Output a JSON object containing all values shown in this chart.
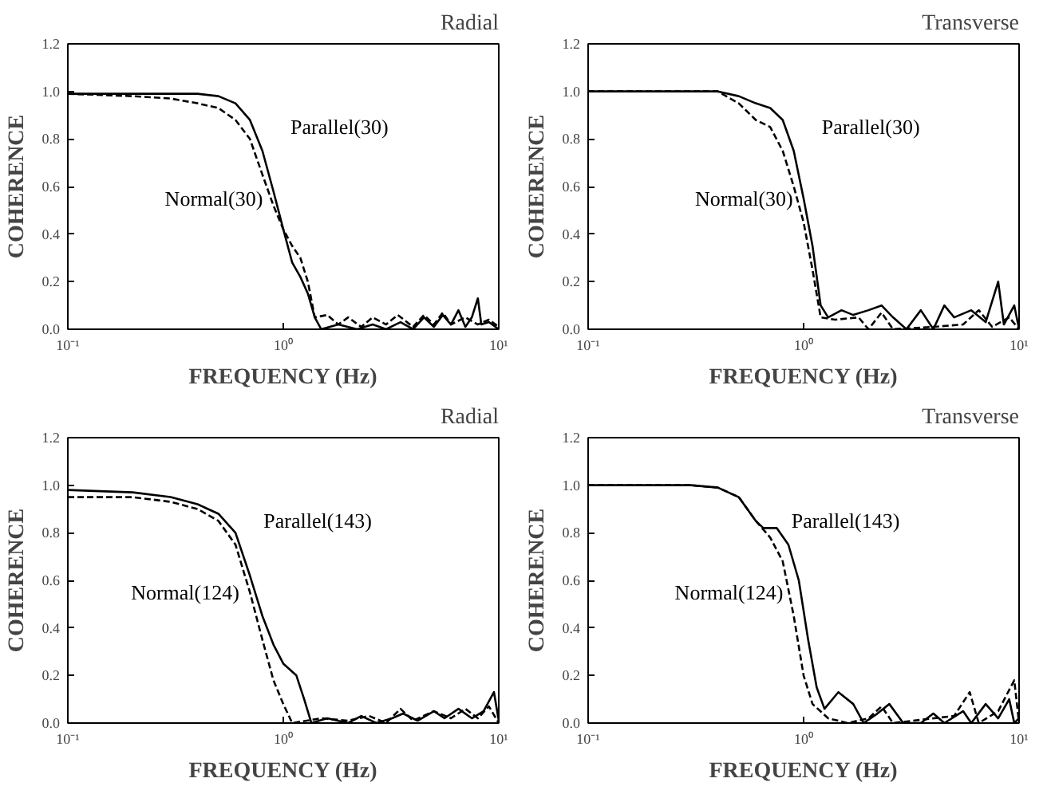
{
  "chart_data": [
    {
      "type": "line",
      "title": "Radial",
      "xlabel": "FREQUENCY (Hz)",
      "ylabel": "COHERENCE",
      "log": "x",
      "grid": false,
      "xlim": [
        0.1,
        10
      ],
      "xticks": [
        {
          "value": 0.1,
          "label": "10⁻¹"
        },
        {
          "value": 1,
          "label": "10⁰"
        },
        {
          "value": 10,
          "label": "10¹"
        }
      ],
      "ylim": [
        0,
        1.2
      ],
      "yticks": [
        {
          "value": 0,
          "label": "0.0"
        },
        {
          "value": 0.2,
          "label": "0.2"
        },
        {
          "value": 0.4,
          "label": "0.4"
        },
        {
          "value": 0.6,
          "label": "0.6"
        },
        {
          "value": 0.8,
          "label": "0.8"
        },
        {
          "value": 1,
          "label": "1.0"
        },
        {
          "value": 1.2,
          "label": "1.2"
        }
      ],
      "series": [
        {
          "name": "Parallel(30)",
          "color": "#000000",
          "line_style": "solid",
          "x": [
            0.1,
            0.2,
            0.3,
            0.4,
            0.5,
            0.6,
            0.7,
            0.8,
            0.9,
            1.0,
            1.1,
            1.2,
            1.3,
            1.4,
            1.5,
            1.8,
            2.2,
            2.6,
            3.0,
            3.5,
            4.0,
            4.5,
            5.0,
            5.5,
            6.0,
            6.5,
            7.0,
            7.5,
            8.0,
            8.3,
            9.0,
            10
          ],
          "values": [
            0.99,
            0.99,
            0.99,
            0.99,
            0.98,
            0.95,
            0.88,
            0.75,
            0.58,
            0.42,
            0.28,
            0.22,
            0.15,
            0.05,
            0.0,
            0.02,
            0.0,
            0.02,
            0.0,
            0.03,
            0.0,
            0.05,
            0.01,
            0.06,
            0.02,
            0.08,
            0.01,
            0.05,
            0.13,
            0.02,
            0.03,
            0.0
          ]
        },
        {
          "name": "Normal(30)",
          "color": "#000000",
          "line_style": "dashed",
          "x": [
            0.1,
            0.2,
            0.3,
            0.4,
            0.5,
            0.6,
            0.7,
            0.8,
            0.9,
            1.0,
            1.1,
            1.2,
            1.3,
            1.4,
            1.6,
            1.8,
            2.0,
            2.3,
            2.6,
            3.0,
            3.4,
            4.0,
            4.5,
            5.0,
            5.5,
            6.0,
            7.0,
            8.0,
            9.0,
            10
          ],
          "values": [
            0.99,
            0.98,
            0.97,
            0.95,
            0.93,
            0.88,
            0.8,
            0.65,
            0.52,
            0.42,
            0.35,
            0.3,
            0.2,
            0.05,
            0.06,
            0.02,
            0.05,
            0.01,
            0.05,
            0.02,
            0.06,
            0.01,
            0.06,
            0.02,
            0.07,
            0.02,
            0.05,
            0.02,
            0.04,
            0.01
          ]
        }
      ]
    },
    {
      "type": "line",
      "title": "Transverse",
      "xlabel": "FREQUENCY (Hz)",
      "ylabel": "COHERENCE",
      "log": "x",
      "grid": false,
      "xlim": [
        0.1,
        10
      ],
      "xticks": [
        {
          "value": 0.1,
          "label": "10⁻¹"
        },
        {
          "value": 1,
          "label": "10⁰"
        },
        {
          "value": 10,
          "label": "10¹"
        }
      ],
      "ylim": [
        0,
        1.2
      ],
      "yticks": [
        {
          "value": 0,
          "label": "0.0"
        },
        {
          "value": 0.2,
          "label": "0.2"
        },
        {
          "value": 0.4,
          "label": "0.4"
        },
        {
          "value": 0.6,
          "label": "0.6"
        },
        {
          "value": 0.8,
          "label": "0.8"
        },
        {
          "value": 1,
          "label": "1.0"
        },
        {
          "value": 1.2,
          "label": "1.2"
        }
      ],
      "series": [
        {
          "name": "Parallel(30)",
          "color": "#000000",
          "line_style": "solid",
          "x": [
            0.1,
            0.2,
            0.3,
            0.4,
            0.5,
            0.6,
            0.7,
            0.8,
            0.9,
            1.0,
            1.1,
            1.2,
            1.3,
            1.5,
            1.7,
            2.0,
            2.3,
            2.6,
            3.0,
            3.5,
            4.0,
            4.5,
            5.0,
            6.0,
            7.0,
            8.0,
            8.5,
            9.5,
            10
          ],
          "values": [
            1.0,
            1.0,
            1.0,
            1.0,
            0.98,
            0.95,
            0.93,
            0.88,
            0.75,
            0.55,
            0.35,
            0.1,
            0.05,
            0.08,
            0.06,
            0.08,
            0.1,
            0.05,
            0.0,
            0.08,
            0.0,
            0.1,
            0.05,
            0.08,
            0.03,
            0.2,
            0.02,
            0.1,
            0.0
          ]
        },
        {
          "name": "Normal(30)",
          "color": "#000000",
          "line_style": "dashed",
          "x": [
            0.1,
            0.2,
            0.3,
            0.4,
            0.5,
            0.6,
            0.7,
            0.8,
            0.9,
            1.0,
            1.1,
            1.2,
            1.4,
            1.8,
            2.0,
            2.3,
            2.6,
            4.0,
            5.5,
            6.5,
            7.5,
            9.0,
            10
          ],
          "values": [
            1.0,
            1.0,
            1.0,
            1.0,
            0.95,
            0.88,
            0.85,
            0.75,
            0.6,
            0.45,
            0.25,
            0.05,
            0.04,
            0.05,
            0.0,
            0.07,
            0.0,
            0.01,
            0.02,
            0.08,
            0.01,
            0.05,
            0.0
          ]
        }
      ]
    },
    {
      "type": "line",
      "title": "Radial",
      "xlabel": "FREQUENCY (Hz)",
      "ylabel": "COHERENCE",
      "log": "x",
      "grid": false,
      "xlim": [
        0.1,
        10
      ],
      "xticks": [
        {
          "value": 0.1,
          "label": "10⁻¹"
        },
        {
          "value": 1,
          "label": "10⁰"
        },
        {
          "value": 10,
          "label": "10¹"
        }
      ],
      "ylim": [
        0,
        1.2
      ],
      "yticks": [
        {
          "value": 0,
          "label": "0.0"
        },
        {
          "value": 0.2,
          "label": "0.2"
        },
        {
          "value": 0.4,
          "label": "0.4"
        },
        {
          "value": 0.6,
          "label": "0.6"
        },
        {
          "value": 0.8,
          "label": "0.8"
        },
        {
          "value": 1,
          "label": "1.0"
        },
        {
          "value": 1.2,
          "label": "1.2"
        }
      ],
      "series": [
        {
          "name": "Parallel(143)",
          "color": "#000000",
          "line_style": "solid",
          "x": [
            0.1,
            0.2,
            0.3,
            0.4,
            0.5,
            0.6,
            0.7,
            0.8,
            0.9,
            1.0,
            1.15,
            1.25,
            1.35,
            1.6,
            2.0,
            2.3,
            2.7,
            3.2,
            3.6,
            4.2,
            5.0,
            5.6,
            6.5,
            7.5,
            8.5,
            9.5,
            10
          ],
          "values": [
            0.98,
            0.97,
            0.95,
            0.92,
            0.88,
            0.8,
            0.62,
            0.45,
            0.33,
            0.25,
            0.2,
            0.1,
            0.0,
            0.02,
            0.0,
            0.03,
            0.0,
            0.02,
            0.04,
            0.01,
            0.05,
            0.02,
            0.06,
            0.02,
            0.05,
            0.13,
            0.01
          ]
        },
        {
          "name": "Normal(124)",
          "color": "#000000",
          "line_style": "dashed",
          "x": [
            0.1,
            0.2,
            0.3,
            0.4,
            0.5,
            0.6,
            0.7,
            0.8,
            0.9,
            1.0,
            1.1,
            1.5,
            2.0,
            2.5,
            3.0,
            3.5,
            4.0,
            5.0,
            6.0,
            7.0,
            8.0,
            9.0,
            10
          ],
          "values": [
            0.95,
            0.95,
            0.93,
            0.9,
            0.85,
            0.75,
            0.55,
            0.35,
            0.18,
            0.08,
            0.0,
            0.02,
            0.01,
            0.03,
            0.0,
            0.06,
            0.01,
            0.05,
            0.02,
            0.06,
            0.02,
            0.07,
            0.0
          ]
        }
      ]
    },
    {
      "type": "line",
      "title": "Transverse",
      "xlabel": "FREQUENCY (Hz)",
      "ylabel": "COHERENCE",
      "log": "x",
      "grid": false,
      "xlim": [
        0.1,
        10
      ],
      "xticks": [
        {
          "value": 0.1,
          "label": "10⁻¹"
        },
        {
          "value": 1,
          "label": "10⁰"
        },
        {
          "value": 10,
          "label": "10¹"
        }
      ],
      "ylim": [
        0,
        1.2
      ],
      "yticks": [
        {
          "value": 0,
          "label": "0.0"
        },
        {
          "value": 0.2,
          "label": "0.2"
        },
        {
          "value": 0.4,
          "label": "0.4"
        },
        {
          "value": 0.6,
          "label": "0.6"
        },
        {
          "value": 0.8,
          "label": "0.8"
        },
        {
          "value": 1,
          "label": "1.0"
        },
        {
          "value": 1.2,
          "label": "1.2"
        }
      ],
      "series": [
        {
          "name": "Parallel(143)",
          "color": "#000000",
          "line_style": "solid",
          "x": [
            0.1,
            0.2,
            0.3,
            0.4,
            0.5,
            0.6,
            0.65,
            0.75,
            0.85,
            0.95,
            1.05,
            1.15,
            1.25,
            1.45,
            1.7,
            1.9,
            2.2,
            2.5,
            2.9,
            3.5,
            4.0,
            4.5,
            5.5,
            6.0,
            7.0,
            8.0,
            9.0,
            9.5,
            10
          ],
          "values": [
            1.0,
            1.0,
            1.0,
            0.99,
            0.95,
            0.85,
            0.82,
            0.82,
            0.75,
            0.6,
            0.35,
            0.15,
            0.06,
            0.13,
            0.08,
            0.0,
            0.04,
            0.08,
            0.0,
            0.0,
            0.04,
            0.0,
            0.05,
            0.0,
            0.08,
            0.02,
            0.1,
            0.0,
            0.02
          ]
        },
        {
          "name": "Normal(124)",
          "color": "#000000",
          "line_style": "dashed",
          "x": [
            0.1,
            0.2,
            0.3,
            0.4,
            0.5,
            0.6,
            0.7,
            0.8,
            0.9,
            1.0,
            1.1,
            1.3,
            1.6,
            2.0,
            2.3,
            2.6,
            5.0,
            5.9,
            6.5,
            8.0,
            9.5,
            10
          ],
          "values": [
            1.0,
            1.0,
            1.0,
            0.99,
            0.95,
            0.85,
            0.78,
            0.68,
            0.45,
            0.2,
            0.08,
            0.02,
            0.0,
            0.02,
            0.07,
            0.0,
            0.03,
            0.13,
            0.0,
            0.05,
            0.18,
            0.0
          ]
        }
      ]
    }
  ]
}
